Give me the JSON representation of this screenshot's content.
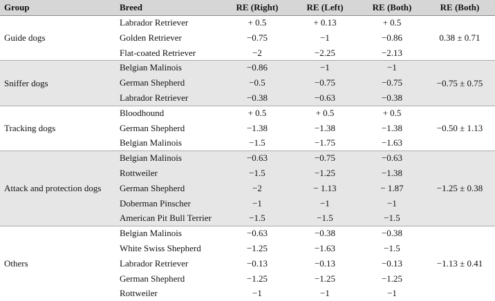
{
  "table": {
    "header": [
      "Group",
      "Breed",
      "RE (Right)",
      "RE (Left)",
      "RE (Both)",
      "RE (Both)"
    ],
    "groups": [
      {
        "name": "Guide dogs",
        "summary": "0.38 ± 0.71",
        "rows": [
          [
            "Labrador Retriever",
            "+ 0.5",
            "+ 0.13",
            "+ 0.5"
          ],
          [
            "Golden Retriever",
            "−0.75",
            "−1",
            "−0.86"
          ],
          [
            "Flat-coated Retriever",
            "−2",
            "−2.25",
            "−2.13"
          ]
        ]
      },
      {
        "name": "Sniffer dogs",
        "summary": "−0.75 ± 0.75",
        "rows": [
          [
            "Belgian Malinois",
            "−0.86",
            "−1",
            "−1"
          ],
          [
            "German Shepherd",
            "−0.5",
            "−0.75",
            "−0.75"
          ],
          [
            "Labrador Retriever",
            "−0.38",
            "−0.63",
            "−0.38"
          ]
        ]
      },
      {
        "name": "Tracking dogs",
        "summary": "−0.50 ± 1.13",
        "rows": [
          [
            "Bloodhound",
            "+ 0.5",
            "+ 0.5",
            "+ 0.5"
          ],
          [
            "German Shepherd",
            "−1.38",
            "−1.38",
            "−1.38"
          ],
          [
            "Belgian Malinois",
            "−1.5",
            "−1.75",
            "−1.63"
          ]
        ]
      },
      {
        "name": "Attack and protection dogs",
        "summary": "−1.25 ± 0.38",
        "rows": [
          [
            "Belgian Malinois",
            "−0.63",
            "−0.75",
            "−0.63"
          ],
          [
            "Rottweiler",
            "−1.5",
            "−1.25",
            "−1.38"
          ],
          [
            "German Shepherd",
            "−2",
            "− 1.13",
            "− 1.87"
          ],
          [
            "Doberman Pinscher",
            "−1",
            "−1",
            "−1"
          ],
          [
            "American Pit Bull Terrier",
            "−1.5",
            "−1.5",
            "−1.5"
          ]
        ]
      },
      {
        "name": "Others",
        "summary": "−1.13 ± 0.41",
        "rows": [
          [
            "Belgian Malinois",
            "−0.63",
            "−0.38",
            "−0.38"
          ],
          [
            "White Swiss Shepherd",
            "−1.25",
            "−1.63",
            "−1.5"
          ],
          [
            "Labrador Retriever",
            "−0.13",
            "−0.13",
            "−0.13"
          ],
          [
            "German Shepherd",
            "−1.25",
            "−1.25",
            "−1.25"
          ],
          [
            "Rottweiler",
            "−1",
            "−1",
            "−1"
          ]
        ]
      }
    ]
  }
}
